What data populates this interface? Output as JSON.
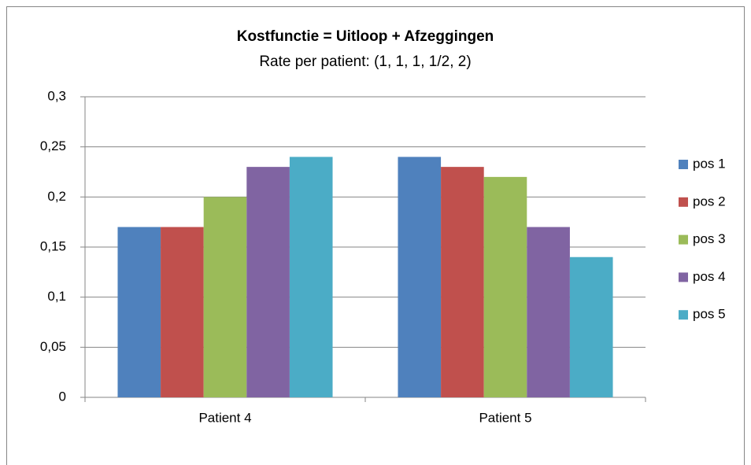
{
  "chart_data": {
    "type": "bar",
    "title": "Kostfunctie = Uitloop + Afzeggingen",
    "subtitle": "Rate per patient: (1, 1, 1, 1/2, 2)",
    "categories": [
      "Patient 4",
      "Patient 5"
    ],
    "series": [
      {
        "name": "pos 1",
        "color": "#4f81bd",
        "values": [
          0.17,
          0.24
        ]
      },
      {
        "name": "pos 2",
        "color": "#c0504d",
        "values": [
          0.17,
          0.23
        ]
      },
      {
        "name": "pos 3",
        "color": "#9bbb59",
        "values": [
          0.2,
          0.22
        ]
      },
      {
        "name": "pos 4",
        "color": "#8064a2",
        "values": [
          0.23,
          0.17
        ]
      },
      {
        "name": "pos 5",
        "color": "#4bacc6",
        "values": [
          0.24,
          0.14
        ]
      }
    ],
    "ylim": [
      0,
      0.3
    ],
    "yticks": [
      0,
      {
        "value": 0.05,
        "label": "0,05"
      },
      {
        "value": 0.1,
        "label": "0,1"
      },
      {
        "value": 0.15,
        "label": "0,15"
      },
      {
        "value": 0.2,
        "label": "0,2"
      },
      {
        "value": 0.25,
        "label": "0,25"
      },
      {
        "value": 0.3,
        "label": "0,3"
      }
    ],
    "grid": true,
    "legend": "right"
  }
}
